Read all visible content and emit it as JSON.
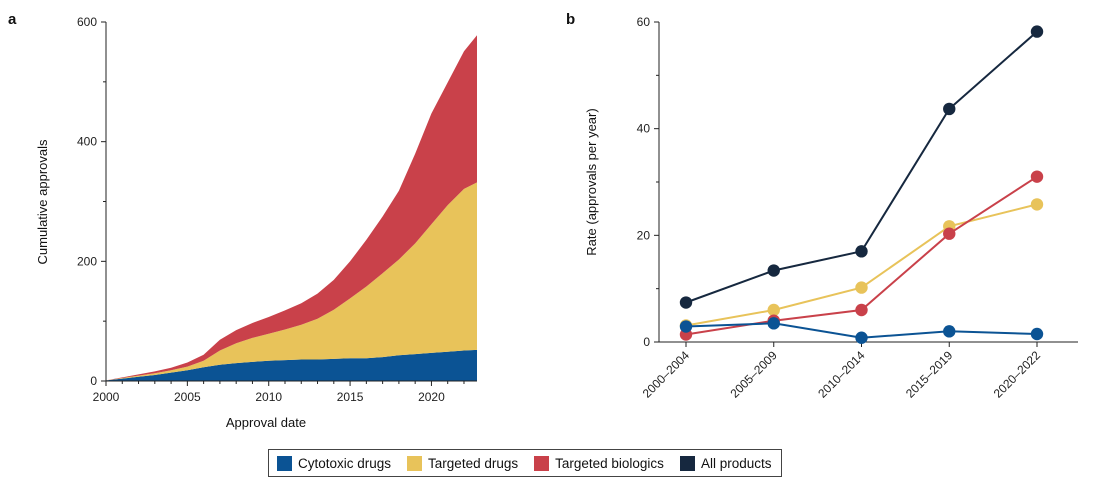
{
  "colors": {
    "cytotoxic": "#0b5394",
    "targeted_drugs": "#e8c35a",
    "targeted_biologics": "#c9414a",
    "all_products": "#16283f"
  },
  "panel_a": {
    "letter": "a"
  },
  "panel_b": {
    "letter": "b"
  },
  "legend": [
    {
      "label": "Cytotoxic drugs",
      "color_key": "cytotoxic"
    },
    {
      "label": "Targeted drugs",
      "color_key": "targeted_drugs"
    },
    {
      "label": "Targeted biologics",
      "color_key": "targeted_biologics"
    },
    {
      "label": "All products",
      "color_key": "all_products"
    }
  ],
  "chart_data": [
    {
      "type": "area",
      "stacked": true,
      "xlabel": "Approval date",
      "ylabel": "Cumulative approvals",
      "xlim": [
        2000,
        2022.8
      ],
      "ylim": [
        0,
        600
      ],
      "xticks": [
        2000,
        2005,
        2010,
        2015,
        2020
      ],
      "yticks": [
        0,
        200,
        400,
        600
      ],
      "x": [
        2000,
        2001,
        2002,
        2003,
        2004,
        2005,
        2006,
        2007,
        2008,
        2009,
        2010,
        2011,
        2012,
        2013,
        2014,
        2015,
        2016,
        2017,
        2018,
        2019,
        2020,
        2021,
        2022,
        2022.8
      ],
      "series": [
        {
          "name": "Cytotoxic drugs",
          "color_key": "cytotoxic",
          "values": [
            1,
            4,
            7,
            10,
            14,
            18,
            23,
            27,
            30,
            32,
            34,
            35,
            36,
            36,
            37,
            38,
            38,
            40,
            43,
            45,
            47,
            49,
            51,
            52
          ]
        },
        {
          "name": "Targeted drugs",
          "color_key": "targeted_drugs",
          "values": [
            0,
            1,
            2,
            3,
            4,
            6,
            11,
            24,
            33,
            40,
            45,
            51,
            58,
            68,
            82,
            100,
            120,
            140,
            160,
            185,
            215,
            245,
            270,
            280
          ]
        },
        {
          "name": "Targeted biologics",
          "color_key": "targeted_biologics",
          "values": [
            0,
            1,
            2,
            3,
            4,
            7,
            10,
            18,
            22,
            25,
            28,
            32,
            36,
            42,
            50,
            62,
            78,
            95,
            115,
            150,
            185,
            205,
            230,
            246
          ]
        }
      ]
    },
    {
      "type": "line",
      "xlabel": "",
      "ylabel": "Rate (approvals per year)",
      "ylim": [
        0,
        60
      ],
      "yticks": [
        0,
        20,
        40,
        60
      ],
      "categories": [
        "2000–2004",
        "2005–2009",
        "2010–2014",
        "2015–2019",
        "2020–2022"
      ],
      "series": [
        {
          "name": "Cytotoxic drugs",
          "color_key": "cytotoxic",
          "values": [
            2.9,
            3.5,
            0.8,
            2.0,
            1.5
          ]
        },
        {
          "name": "Targeted drugs",
          "color_key": "targeted_drugs",
          "values": [
            3.1,
            6.0,
            10.2,
            21.7,
            25.8
          ]
        },
        {
          "name": "Targeted biologics",
          "color_key": "targeted_biologics",
          "values": [
            1.4,
            4.0,
            6.0,
            20.3,
            31.0
          ]
        },
        {
          "name": "All products",
          "color_key": "all_products",
          "values": [
            7.4,
            13.4,
            17.0,
            43.7,
            58.2
          ]
        }
      ]
    }
  ]
}
